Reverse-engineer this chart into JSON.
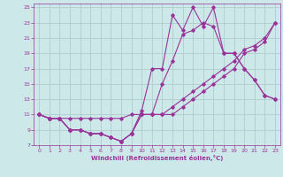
{
  "xlabel": "Windchill (Refroidissement éolien,°C)",
  "bg_color": "#cde8e8",
  "line_color": "#993399",
  "xlim": [
    -0.5,
    23.5
  ],
  "ylim": [
    7,
    25.5
  ],
  "xticks": [
    0,
    1,
    2,
    3,
    4,
    5,
    6,
    7,
    8,
    9,
    10,
    11,
    12,
    13,
    14,
    15,
    16,
    17,
    18,
    19,
    20,
    21,
    22,
    23
  ],
  "yticks": [
    7,
    9,
    11,
    13,
    15,
    17,
    19,
    21,
    23,
    25
  ],
  "series1_y": [
    11,
    10.5,
    10.5,
    10.5,
    10.5,
    10.5,
    10.5,
    10.5,
    10.5,
    11,
    11,
    11,
    11,
    12,
    13,
    14,
    15,
    16,
    17,
    18,
    19.5,
    20,
    21,
    23
  ],
  "series2_y": [
    11,
    10.5,
    10.5,
    9,
    9,
    8.5,
    8.5,
    8,
    7.5,
    8.5,
    11,
    11,
    11,
    11,
    12,
    13,
    14,
    15,
    16,
    17,
    19,
    19.5,
    20.5,
    23
  ],
  "series3_y": [
    11,
    10.5,
    10.5,
    9,
    9,
    8.5,
    8.5,
    8,
    7.5,
    8.5,
    11,
    11,
    15,
    18,
    21.5,
    22,
    23,
    22.5,
    19,
    19,
    17,
    15.5,
    13.5,
    13
  ],
  "series4_y": [
    11,
    10.5,
    10.5,
    9,
    9,
    8.5,
    8.5,
    8,
    7.5,
    8.5,
    11.5,
    17,
    17,
    24,
    22,
    25,
    22.5,
    25,
    19,
    19,
    17,
    15.5,
    13.5,
    13
  ],
  "grid_color": "#b0cccc"
}
